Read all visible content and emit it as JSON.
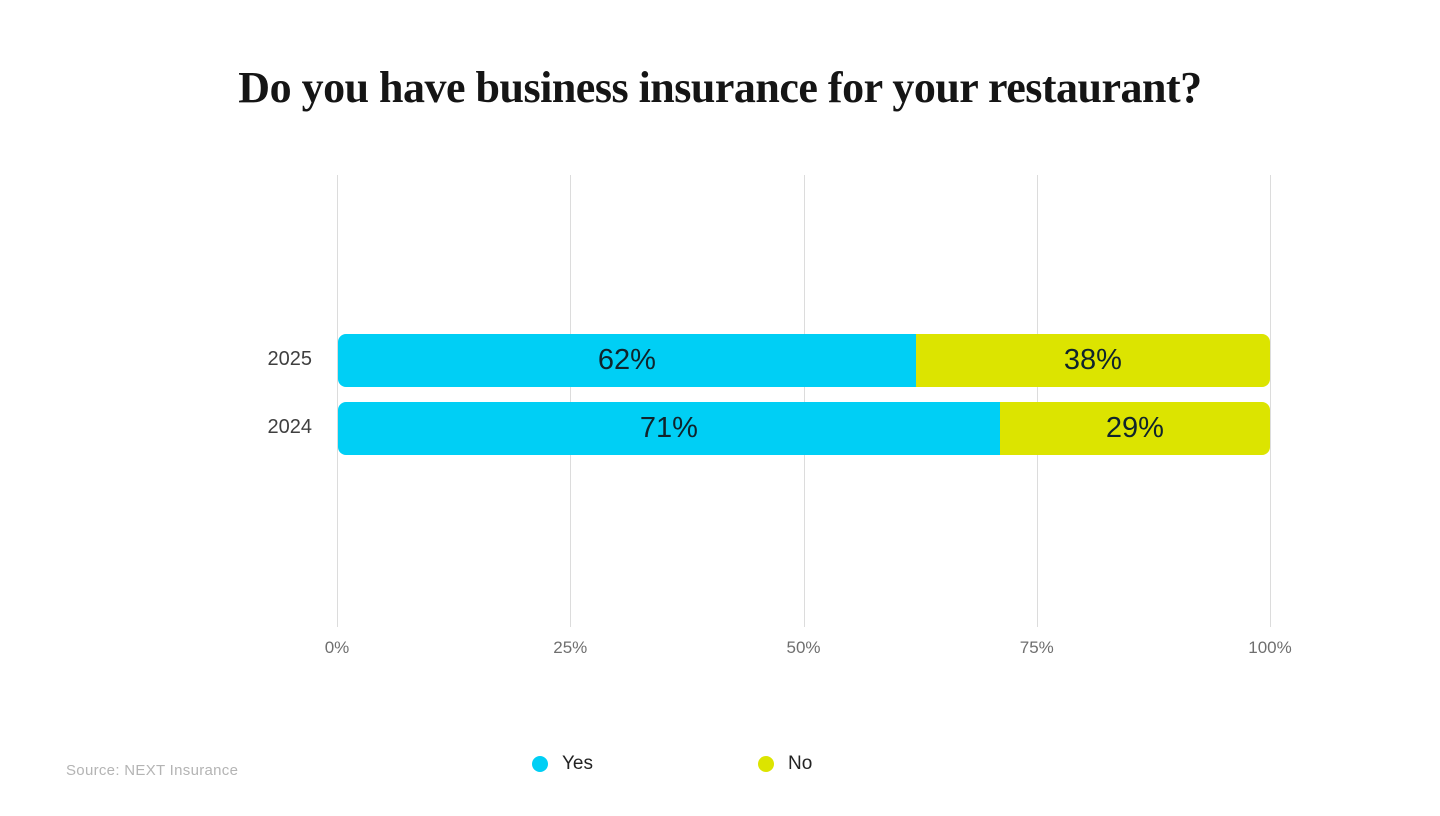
{
  "title": "Do you have business insurance for your restaurant?",
  "source": "Source: NEXT Insurance",
  "chart_data": {
    "type": "bar",
    "orientation": "horizontal",
    "stacked": true,
    "title": "Do you have business insurance for your restaurant?",
    "categories": [
      "2025",
      "2024"
    ],
    "series": [
      {
        "name": "Yes",
        "color": "#00cff5",
        "values": [
          62,
          71
        ],
        "labels": [
          "62%",
          "71%"
        ]
      },
      {
        "name": "No",
        "color": "#dce400",
        "values": [
          38,
          29
        ],
        "labels": [
          "38%",
          "29%"
        ]
      }
    ],
    "xlabel": "",
    "ylabel": "",
    "xlim": [
      0,
      100
    ],
    "x_ticks": [
      {
        "value": 0,
        "label": "0%"
      },
      {
        "value": 25,
        "label": "25%"
      },
      {
        "value": 50,
        "label": "50%"
      },
      {
        "value": 75,
        "label": "75%"
      },
      {
        "value": 100,
        "label": "100%"
      }
    ],
    "grid": true,
    "legend_position": "bottom"
  },
  "colors": {
    "background": "#ffffff",
    "title_text": "#151515",
    "gridline": "#dcdcdc",
    "bar_value_text": "#10242c",
    "category_text": "#3f3f3f",
    "tick_text": "#6f6f6f",
    "legend_text": "#232323",
    "source_text": "#b4b4b4"
  }
}
